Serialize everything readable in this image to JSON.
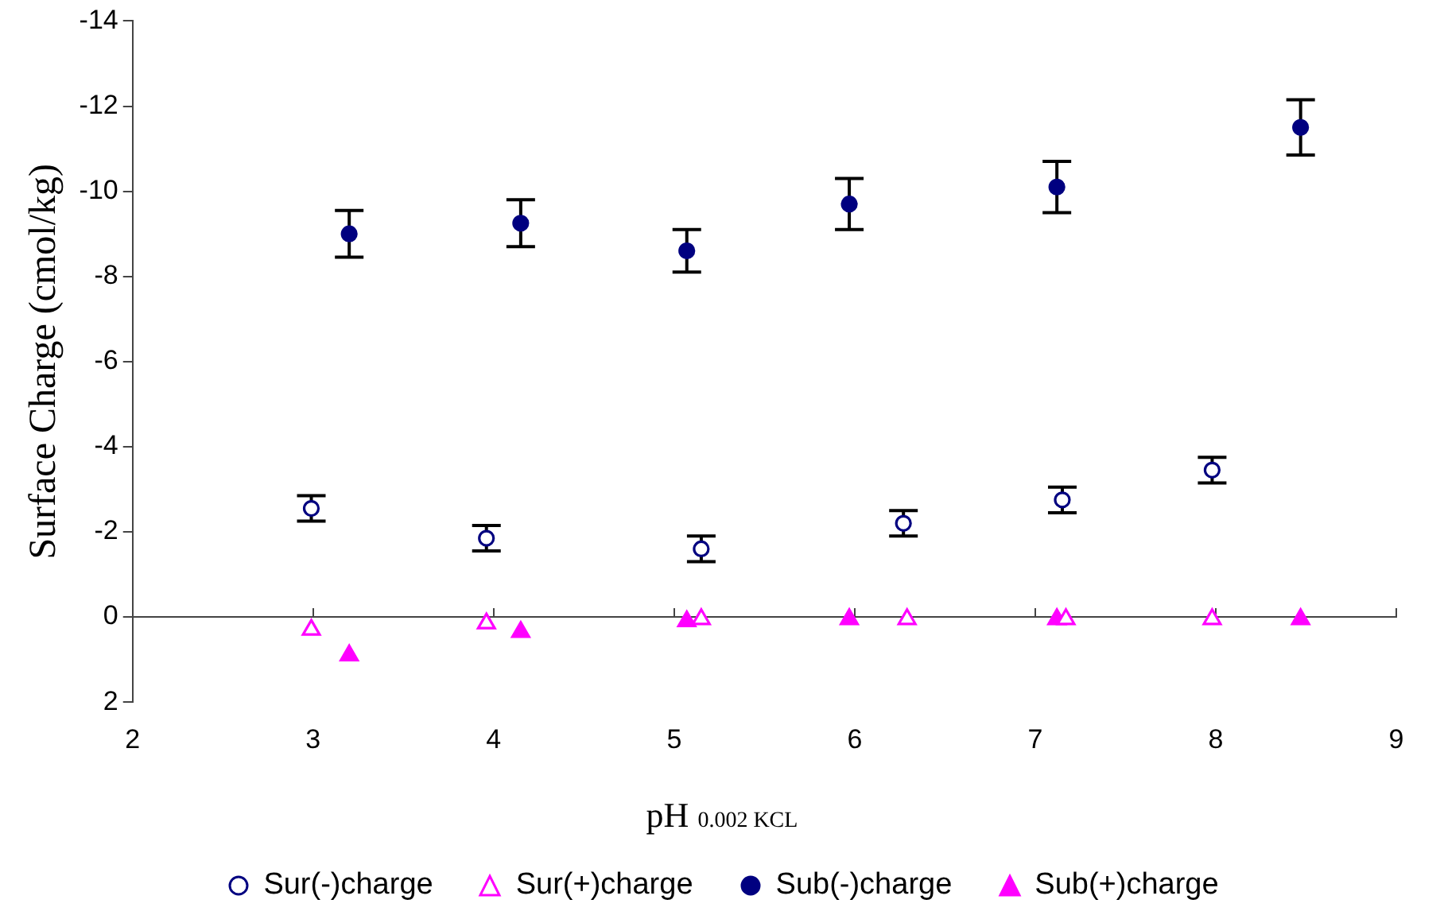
{
  "chart_data": {
    "type": "scatter",
    "xlabel": "pH $_{0.002 KCL}$",
    "ylabel": "Surface Charge (cmol/kg)",
    "xlim": [
      2,
      9
    ],
    "xticks": [
      2,
      3,
      4,
      5,
      6,
      7,
      8,
      9
    ],
    "ylim": [
      2,
      -14
    ],
    "yticks": [
      -14,
      -12,
      -10,
      -8,
      -6,
      -4,
      -2,
      0,
      2
    ],
    "legend": "bottom",
    "series": [
      {
        "name": "Sur(-)charge",
        "color": "#000080",
        "marker": "circle",
        "x": [
          2.99,
          3.96,
          5.15,
          6.27,
          7.15,
          7.98
        ],
        "values": [
          -2.55,
          -1.85,
          -1.6,
          -2.2,
          -2.75,
          -3.45
        ],
        "errors": [
          0.3,
          0.3,
          0.3,
          0.3,
          0.3,
          0.3
        ]
      },
      {
        "name": "Sur(+)charge",
        "color": "#ff00ff",
        "marker": "triangle",
        "x": [
          2.99,
          3.96,
          5.15,
          6.29,
          7.17,
          7.98
        ],
        "values": [
          0.3,
          0.15,
          0.05,
          0.05,
          0.05,
          0.05
        ]
      },
      {
        "name": "Sub(-)charge",
        "color": "#000080",
        "marker": "circle",
        "x": [
          3.2,
          4.15,
          5.07,
          5.97,
          7.12,
          8.47
        ],
        "values": [
          -9.0,
          -9.25,
          -8.6,
          -9.7,
          -10.1,
          -11.5
        ],
        "errors": [
          0.55,
          0.55,
          0.5,
          0.6,
          0.6,
          0.65
        ]
      },
      {
        "name": "Sub(+)charge",
        "color": "#ff00ff",
        "marker": "triangle",
        "x": [
          3.2,
          4.15,
          5.07,
          5.97,
          7.12,
          8.47
        ],
        "values": [
          0.9,
          0.35,
          0.1,
          0.05,
          0.05,
          0.05
        ]
      }
    ]
  }
}
